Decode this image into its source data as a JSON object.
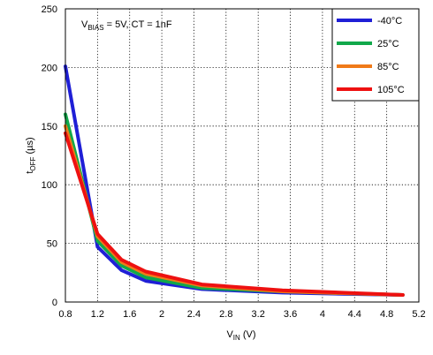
{
  "chart_data": {
    "type": "line",
    "xlabel": {
      "main": "V",
      "sub": "IN",
      "unit": " (V)"
    },
    "ylabel": {
      "main": "t",
      "sub": "OFF",
      "unit": " (µs)"
    },
    "xlim": [
      0.8,
      5.2
    ],
    "ylim": [
      0,
      250
    ],
    "xticks": [
      0.8,
      1.2,
      1.6,
      2,
      2.4,
      2.8,
      3.2,
      3.6,
      4,
      4.4,
      4.8,
      5.2
    ],
    "xtick_labels": [
      "0.8",
      "1.2",
      "1.6",
      "2",
      "2.4",
      "2.8",
      "3.2",
      "3.6",
      "4",
      "4.4",
      "4.8",
      "5.2"
    ],
    "yticks": [
      0,
      50,
      100,
      150,
      200,
      250
    ],
    "ytick_labels": [
      "0",
      "50",
      "100",
      "150",
      "200",
      "250"
    ],
    "grid": true,
    "legend_position": "top-right",
    "annotation": {
      "v": "V",
      "bias_sub": "BIAS",
      "rest": " = 5V, CT = 1nF"
    },
    "series": [
      {
        "name": "-40°C",
        "color": "#1f1fd6",
        "x": [
          0.8,
          1.2,
          1.5,
          1.8,
          2.5,
          3.5,
          5.0
        ],
        "y": [
          201,
          47,
          27,
          18,
          11,
          8,
          6
        ]
      },
      {
        "name": "25°C",
        "color": "#11a84a",
        "x": [
          0.8,
          1.2,
          1.5,
          1.8,
          2.5,
          3.5,
          5.0
        ],
        "y": [
          160,
          52,
          31,
          21,
          12,
          9,
          6
        ]
      },
      {
        "name": "85°C",
        "color": "#f07a18",
        "x": [
          0.8,
          1.2,
          1.5,
          1.8,
          2.5,
          3.5,
          5.0
        ],
        "y": [
          150,
          56,
          34,
          24,
          14,
          9,
          6
        ]
      },
      {
        "name": "105°C",
        "color": "#ee1111",
        "x": [
          0.8,
          1.2,
          1.5,
          1.8,
          2.5,
          3.5,
          5.0
        ],
        "y": [
          144,
          58,
          36,
          26,
          15,
          10,
          6
        ]
      }
    ]
  }
}
